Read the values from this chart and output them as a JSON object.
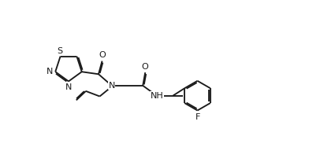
{
  "background_color": "#ffffff",
  "line_color": "#1a1a1a",
  "text_color": "#1a1a1a",
  "line_width": 1.35,
  "font_size": 8.0,
  "fig_width": 3.92,
  "fig_height": 2.06,
  "dpi": 100,
  "xlim": [
    0.0,
    10.0
  ],
  "ylim": [
    2.5,
    6.8
  ]
}
